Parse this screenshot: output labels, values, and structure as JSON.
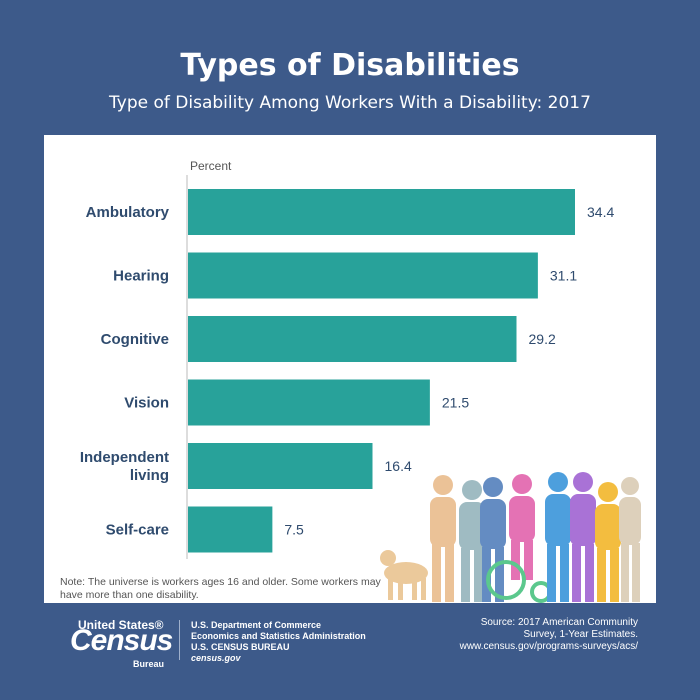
{
  "header": {
    "title": "Types of Disabilities",
    "subtitle": "Type of Disability Among Workers With a Disability: 2017"
  },
  "chart_data": {
    "type": "bar",
    "orientation": "horizontal",
    "title": "Types of Disabilities",
    "subtitle": "Type of Disability Among Workers With a Disability: 2017",
    "xlabel": "Percent",
    "categories": [
      [
        "Ambulatory"
      ],
      [
        "Hearing"
      ],
      [
        "Cognitive"
      ],
      [
        "Vision"
      ],
      [
        "Independent",
        "living"
      ],
      [
        "Self-care"
      ]
    ],
    "values": [
      34.4,
      31.1,
      29.2,
      21.5,
      16.4,
      7.5
    ],
    "value_labels": [
      "34.4",
      "31.1",
      "29.2",
      "21.5",
      "16.4",
      "7.5"
    ],
    "xlim": [
      0,
      40
    ],
    "bar_color": "#28a29a"
  },
  "note": "Note: The universe is workers ages 16 and older. Some workers may have more than one disability.",
  "footer": {
    "logo_us": "United States®",
    "logo_census": "Census",
    "logo_bureau": "Bureau",
    "dept_line1": "U.S. Department of Commerce",
    "dept_line2": "Economics and Statistics Administration",
    "dept_line3": "U.S. CENSUS BUREAU",
    "dept_site": "census.gov",
    "source_line1": "Source: 2017 American Community",
    "source_line2": "Survey, 1-Year Estimates.",
    "source_line3": "www.census.gov/programs-surveys/acs/"
  },
  "colors": {
    "background": "#3d5a8a",
    "panel": "#ffffff",
    "bar": "#28a29a",
    "label": "#2f4b6e"
  }
}
